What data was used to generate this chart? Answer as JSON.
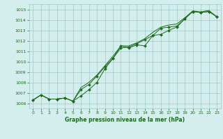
{
  "xlabel": "Graphe pression niveau de la mer (hPa)",
  "bg_color": "#d4eeee",
  "grid_color": "#a0c8c8",
  "line_color": "#1a6b1a",
  "marker_color": "#1a6b1a",
  "x_ticks": [
    0,
    1,
    2,
    3,
    4,
    5,
    6,
    7,
    8,
    9,
    10,
    11,
    12,
    13,
    14,
    15,
    16,
    17,
    18,
    19,
    20,
    21,
    22,
    23
  ],
  "y_ticks": [
    1006,
    1007,
    1008,
    1009,
    1010,
    1011,
    1012,
    1013,
    1014,
    1015
  ],
  "ylim": [
    1005.5,
    1015.5
  ],
  "xlim": [
    -0.5,
    23.5
  ],
  "series1": [
    1006.3,
    1006.8,
    1006.4,
    1006.4,
    1006.5,
    1006.2,
    1006.7,
    1007.3,
    1008.0,
    1009.3,
    1010.3,
    1011.5,
    1011.3,
    1011.6,
    1011.5,
    1012.5,
    1012.6,
    1013.0,
    1013.3,
    1014.1,
    1014.8,
    1014.7,
    1014.8,
    1014.3
  ],
  "series2": [
    1006.3,
    1006.8,
    1006.4,
    1006.4,
    1006.5,
    1006.2,
    1007.3,
    1007.8,
    1008.6,
    1009.5,
    1010.3,
    1011.3,
    1011.4,
    1011.7,
    1012.1,
    1012.5,
    1013.2,
    1013.3,
    1013.4,
    1014.1,
    1014.8,
    1014.7,
    1014.8,
    1014.3
  ],
  "series3": [
    1006.3,
    1006.8,
    1006.4,
    1006.4,
    1006.5,
    1006.2,
    1007.5,
    1008.0,
    1008.7,
    1009.6,
    1010.5,
    1011.5,
    1011.5,
    1011.8,
    1012.2,
    1012.8,
    1013.3,
    1013.5,
    1013.6,
    1014.2,
    1014.85,
    1014.75,
    1014.9,
    1014.3
  ]
}
